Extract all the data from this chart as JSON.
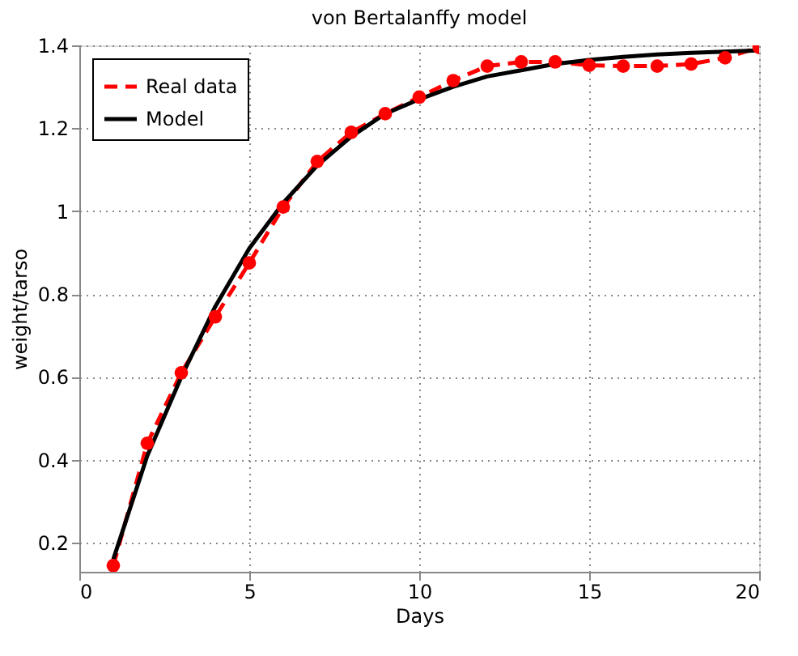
{
  "chart_data": {
    "type": "line",
    "title": "von Bertalanffy model",
    "xlabel": "Days",
    "ylabel": "weight/tarso",
    "x": [
      1,
      2,
      3,
      4,
      5,
      6,
      7,
      8,
      9,
      10,
      11,
      12,
      13,
      14,
      15,
      16,
      17,
      18,
      19,
      20
    ],
    "series": [
      {
        "name": "Real data",
        "color": "#ff0000",
        "line_style": "dashed",
        "marker": "circle",
        "values": [
          0.145,
          0.44,
          0.61,
          0.745,
          0.875,
          1.01,
          1.12,
          1.19,
          1.235,
          1.275,
          1.315,
          1.35,
          1.36,
          1.36,
          1.352,
          1.35,
          1.35,
          1.355,
          1.37,
          1.395
        ]
      },
      {
        "name": "Model",
        "color": "#000000",
        "line_style": "solid",
        "marker": "none",
        "values": [
          0.16,
          0.41,
          0.6,
          0.77,
          0.91,
          1.02,
          1.11,
          1.18,
          1.235,
          1.27,
          1.3,
          1.325,
          1.34,
          1.355,
          1.365,
          1.372,
          1.378,
          1.382,
          1.385,
          1.388
        ]
      }
    ],
    "xlim": [
      0,
      20
    ],
    "xticks": [
      0,
      5,
      10,
      15,
      20
    ],
    "ylim": [
      0.13,
      1.4
    ],
    "yticks": [
      0.2,
      0.4,
      0.6,
      0.8,
      1,
      1.2,
      1.4
    ],
    "grid": true,
    "legend": "top left"
  }
}
